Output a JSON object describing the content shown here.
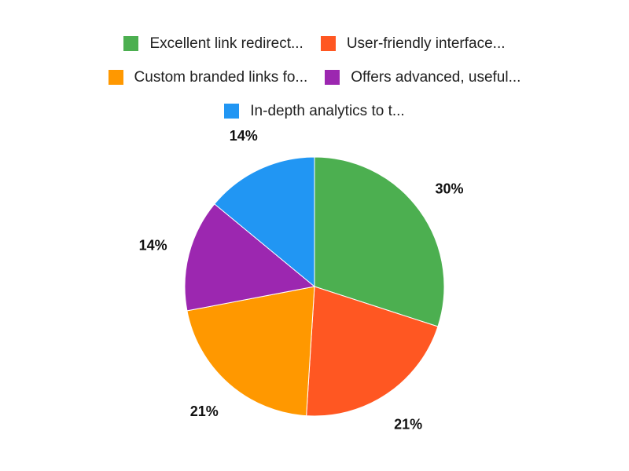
{
  "chart_data": {
    "type": "pie",
    "title": "",
    "legend_position": "top",
    "start_angle": "top, clockwise",
    "slices": [
      {
        "label": "Excellent link redirect...",
        "value": 30,
        "display": "30%",
        "color": "#4caf50"
      },
      {
        "label": "User-friendly interface...",
        "value": 21,
        "display": "21%",
        "color": "#ff5722"
      },
      {
        "label": "Custom branded links fo...",
        "value": 21,
        "display": "21%",
        "color": "#ff9800"
      },
      {
        "label": "Offers advanced, useful...",
        "value": 14,
        "display": "14%",
        "color": "#9c27b0"
      },
      {
        "label": "In-depth analytics to t...",
        "value": 14,
        "display": "14%",
        "color": "#2196f3"
      }
    ]
  }
}
